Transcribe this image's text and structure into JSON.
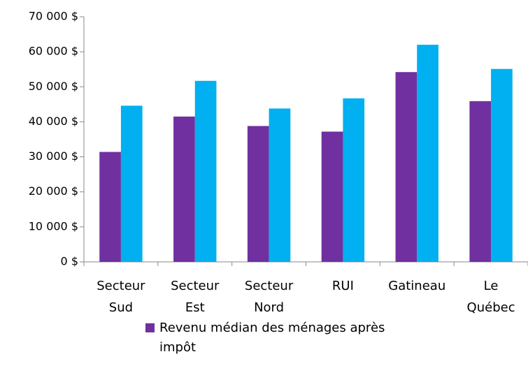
{
  "chart_data": {
    "type": "bar",
    "categories": [
      "Secteur Sud",
      "Secteur Est",
      "Secteur Nord",
      "RUI",
      "Gatineau",
      "Le Québec"
    ],
    "series": [
      {
        "name": "Revenu médian des ménages après impôt",
        "color": "#7030a0",
        "values": [
          31400,
          41500,
          38800,
          37200,
          54200,
          45900
        ]
      },
      {
        "color": "#00b0f0",
        "values": [
          44600,
          51700,
          43800,
          46700,
          62000,
          55100
        ]
      }
    ],
    "ylim": [
      0,
      70000
    ],
    "yticks": [
      {
        "value": 0,
        "label": "0 $"
      },
      {
        "value": 10000,
        "label": "10 000 $"
      },
      {
        "value": 20000,
        "label": "20 000 $"
      },
      {
        "value": 30000,
        "label": "30 000 $"
      },
      {
        "value": 40000,
        "label": "40 000 $"
      },
      {
        "value": 50000,
        "label": "50 000 $"
      },
      {
        "value": 60000,
        "label": "60 000 $"
      },
      {
        "value": 70000,
        "label": "70 000 $"
      }
    ],
    "grid": false
  }
}
